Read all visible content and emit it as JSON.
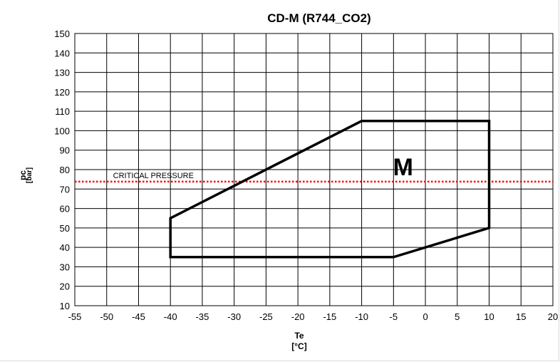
{
  "chart_data": {
    "type": "line",
    "title": "CD-M (R744_CO2)",
    "xlabel": "Te",
    "xunit": "[°C]",
    "ylabel": "pc",
    "yunit": "[bar]",
    "xlim": [
      -55,
      20
    ],
    "ylim": [
      10,
      150
    ],
    "xticks": [
      -55,
      -50,
      -45,
      -40,
      -35,
      -30,
      -25,
      -20,
      -15,
      -10,
      -5,
      0,
      5,
      10,
      15,
      20
    ],
    "yticks": [
      10,
      20,
      30,
      40,
      50,
      60,
      70,
      80,
      90,
      100,
      110,
      120,
      130,
      140,
      150
    ],
    "grid": true,
    "series": [
      {
        "name": "M",
        "color": "#000000",
        "closed": true,
        "points": [
          {
            "x": -40,
            "y": 35
          },
          {
            "x": -5,
            "y": 35
          },
          {
            "x": 10,
            "y": 50
          },
          {
            "x": 10,
            "y": 105
          },
          {
            "x": -10,
            "y": 105
          },
          {
            "x": -40,
            "y": 55
          }
        ]
      }
    ],
    "reference_lines": [
      {
        "label": "CRITICAL PRESSURE",
        "y": 73.8,
        "color": "#ff0000",
        "style": "dotted"
      }
    ]
  }
}
